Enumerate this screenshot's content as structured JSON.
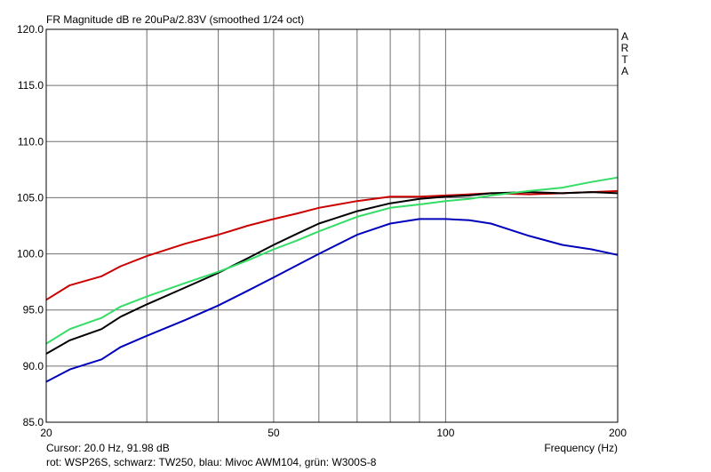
{
  "chart_data": {
    "type": "line",
    "title": "FR Magnitude dB re 20uPa/2.83V (smoothed 1/24 oct)",
    "xlabel": "Frequency (Hz)",
    "ylabel": "",
    "x_scale": "log",
    "xlim": [
      20,
      200
    ],
    "ylim": [
      85,
      120
    ],
    "grid": true,
    "y_ticks": [
      "120.0",
      "115.0",
      "110.0",
      "105.0",
      "100.0",
      "95.0",
      "90.0",
      "85.0"
    ],
    "x_ticks": [
      "20",
      "50",
      "100",
      "200"
    ],
    "watermark": "ARTA",
    "cursor_text": "Cursor: 20.0 Hz, 91.98 dB",
    "legend_text": "rot: WSP26S, schwarz: TW250, blau: Mivoc AWM104, grün: W300S-8",
    "series": [
      {
        "color": "#cc0000",
        "x": [
          20,
          22,
          25,
          27,
          30,
          35,
          40,
          45,
          50,
          55,
          60,
          70,
          80,
          90,
          100,
          110,
          120,
          140,
          160,
          180,
          200
        ],
        "y": [
          95.9,
          97.2,
          98.0,
          98.9,
          99.8,
          100.9,
          101.7,
          102.5,
          103.1,
          103.6,
          104.1,
          104.7,
          105.1,
          105.1,
          105.2,
          105.3,
          105.4,
          105.3,
          105.4,
          105.5,
          105.6
        ]
      },
      {
        "color": "#000000",
        "x": [
          20,
          22,
          25,
          27,
          30,
          35,
          40,
          45,
          50,
          55,
          60,
          70,
          80,
          90,
          100,
          110,
          120,
          140,
          160,
          180,
          200
        ],
        "y": [
          91.1,
          92.3,
          93.3,
          94.4,
          95.5,
          97.0,
          98.3,
          99.6,
          100.8,
          101.8,
          102.7,
          103.8,
          104.5,
          104.9,
          105.1,
          105.2,
          105.4,
          105.5,
          105.4,
          105.5,
          105.4
        ]
      },
      {
        "color": "#0000bb",
        "x": [
          20,
          22,
          25,
          27,
          30,
          35,
          40,
          45,
          50,
          55,
          60,
          70,
          80,
          90,
          100,
          110,
          120,
          140,
          160,
          180,
          200
        ],
        "y": [
          88.6,
          89.7,
          90.6,
          91.7,
          92.7,
          94.1,
          95.4,
          96.7,
          97.9,
          99.0,
          100.0,
          101.7,
          102.7,
          103.1,
          103.1,
          103.0,
          102.7,
          101.6,
          100.8,
          100.4,
          99.9
        ]
      },
      {
        "color": "#33dd66",
        "x": [
          20,
          22,
          25,
          27,
          30,
          35,
          40,
          45,
          50,
          55,
          60,
          70,
          80,
          90,
          100,
          110,
          120,
          140,
          160,
          180,
          200
        ],
        "y": [
          92.0,
          93.3,
          94.3,
          95.3,
          96.2,
          97.4,
          98.4,
          99.4,
          100.4,
          101.2,
          102.0,
          103.3,
          104.1,
          104.4,
          104.7,
          104.9,
          105.2,
          105.6,
          105.9,
          106.4,
          106.8
        ]
      }
    ]
  }
}
